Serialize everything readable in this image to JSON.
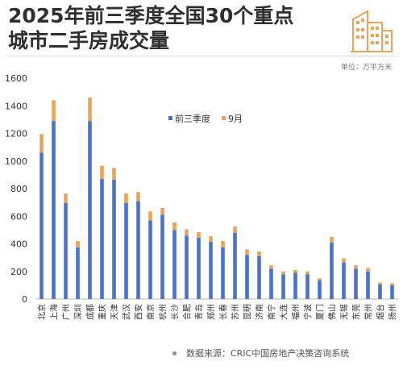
{
  "title_lines": [
    "2025年前三季度全国30个重点",
    "城市二手房成交量"
  ],
  "unit": "单位：万平方米",
  "source": "数据来源：CRIC中国房地产决策咨询系统",
  "colors": {
    "blue": "#4b73c9",
    "orange": "#eaa45a",
    "title": "#2f2f2f",
    "axis": "#444444",
    "grid": "#d9d9d9"
  },
  "logo_icon": "buildings-icon",
  "chart_data": {
    "type": "bar",
    "stacked": true,
    "categories": [
      "北京",
      "上海",
      "广州",
      "深圳",
      "成都",
      "重庆",
      "天津",
      "武汉",
      "西安",
      "南京",
      "杭州",
      "长沙",
      "合肥",
      "青岛",
      "郑州",
      "长春",
      "苏州",
      "昆明",
      "济南",
      "南宁",
      "大连",
      "福州",
      "宁波",
      "厦门",
      "佛山",
      "无锡",
      "东莞",
      "常州",
      "烟台",
      "扬州"
    ],
    "series": [
      {
        "name": "前三季度",
        "values": [
          1060,
          1290,
          695,
          375,
          1290,
          870,
          865,
          695,
          710,
          570,
          610,
          500,
          460,
          445,
          415,
          375,
          480,
          320,
          310,
          220,
          180,
          190,
          180,
          135,
          410,
          265,
          220,
          200,
          105,
          100
        ]
      },
      {
        "name": "9月",
        "values": [
          135,
          150,
          70,
          45,
          170,
          95,
          85,
          70,
          65,
          65,
          50,
          55,
          45,
          40,
          40,
          45,
          45,
          40,
          35,
          25,
          20,
          20,
          20,
          15,
          40,
          30,
          25,
          25,
          15,
          15
        ]
      }
    ],
    "ylim": [
      0,
      1600
    ],
    "yticks": [
      0,
      200,
      400,
      600,
      800,
      1000,
      1200,
      1400,
      1600
    ],
    "legend_position": "top-right",
    "grid": false
  }
}
